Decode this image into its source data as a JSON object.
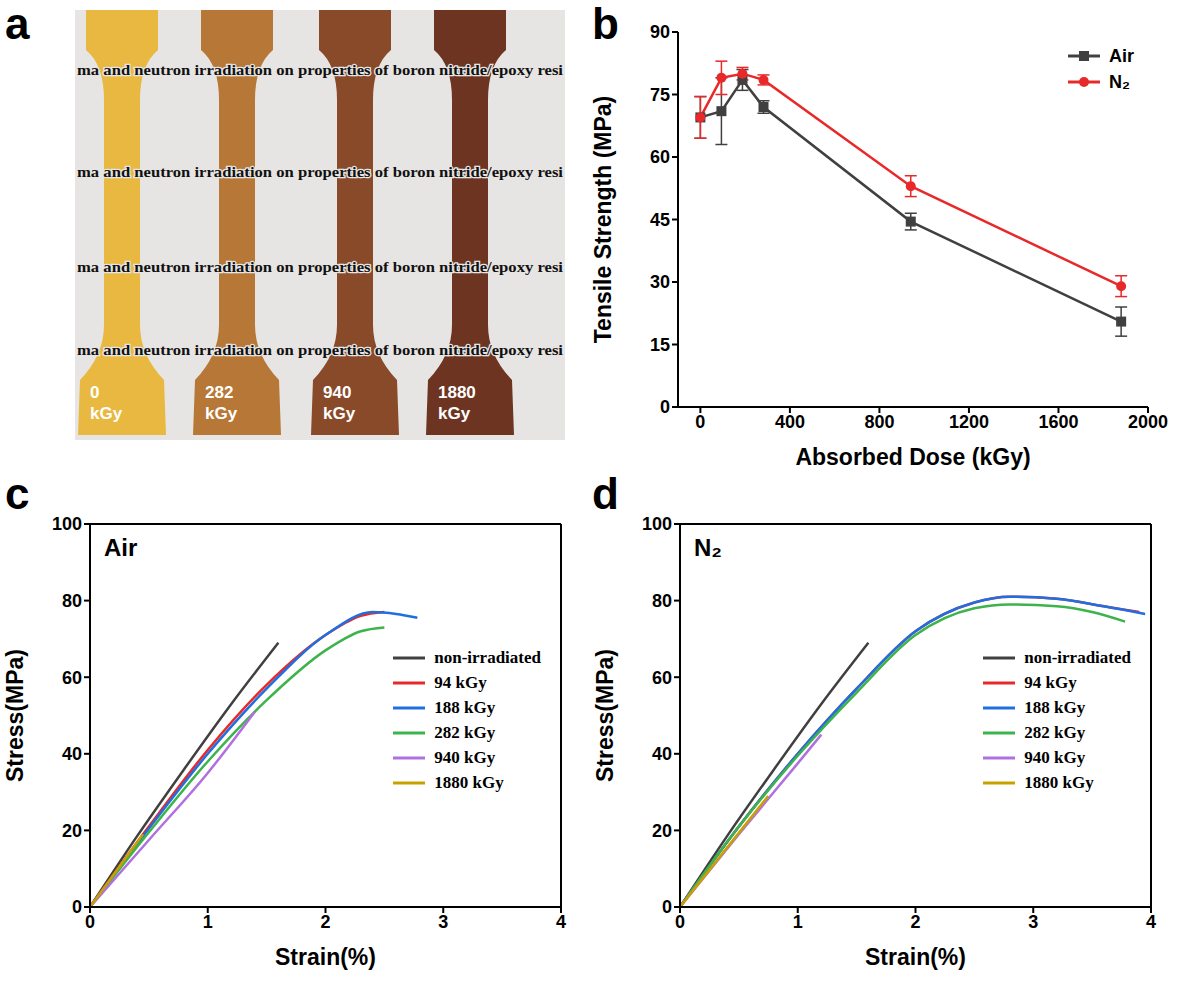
{
  "photo": {
    "panel": "a",
    "background_text": "ma and neutron irradiation on properties of boron nitride/epoxy resi",
    "specimens": [
      {
        "label": "0 kGy",
        "color": "#e8b22a"
      },
      {
        "label": "282 kGy",
        "color": "#b0681e"
      },
      {
        "label": "940 kGy",
        "color": "#7c3410"
      },
      {
        "label": "1880 kGy",
        "color": "#5c1c06"
      }
    ]
  },
  "chart_data": [
    {
      "panel": "b",
      "type": "line",
      "x_label": "Absorbed Dose (kGy)",
      "y_label": "Tensile Strength (MPa)",
      "x": [
        0,
        94,
        188,
        282,
        940,
        1880
      ],
      "xlim": [
        -100,
        2000
      ],
      "xticks": [
        0,
        400,
        800,
        1200,
        1600,
        2000
      ],
      "ylim": [
        0,
        90
      ],
      "yticks": [
        0,
        15,
        30,
        45,
        60,
        75,
        90
      ],
      "legend": "upper right",
      "series": [
        {
          "name": "Air",
          "color": "#404040",
          "marker": "square",
          "values": [
            69.5,
            71,
            78.5,
            72,
            44.5,
            20.5
          ],
          "errors": [
            5,
            8,
            2.5,
            1.5,
            2,
            3.5
          ]
        },
        {
          "name": "N₂",
          "color": "#e8292a",
          "marker": "circle",
          "values": [
            69.5,
            79,
            80,
            78.5,
            53,
            29
          ],
          "errors": [
            5,
            4,
            1.5,
            1.2,
            2.5,
            2.5
          ]
        }
      ]
    },
    {
      "panel": "c",
      "type": "line",
      "title": "Air",
      "x_label": "Strain(%)",
      "y_label": "Stress(MPa)",
      "xlim": [
        0,
        4
      ],
      "xticks": [
        0,
        1,
        2,
        3,
        4
      ],
      "ylim": [
        0,
        100
      ],
      "yticks": [
        0,
        20,
        40,
        60,
        80,
        100
      ],
      "legend": "right",
      "series": [
        {
          "name": "non-irradiated",
          "color": "#404040",
          "x": [
            0,
            0.4,
            0.8,
            1.2,
            1.6
          ],
          "values": [
            0,
            18.5,
            36,
            53,
            69
          ]
        },
        {
          "name": "94 kGy",
          "color": "#e8292a",
          "x": [
            0,
            0.5,
            1,
            1.5,
            2,
            2.3,
            2.5
          ],
          "values": [
            0,
            21,
            41,
            58,
            71,
            76,
            77
          ]
        },
        {
          "name": "188 kGy",
          "color": "#1f6fe0",
          "x": [
            0,
            0.5,
            1,
            1.5,
            2,
            2.4,
            2.6,
            2.78
          ],
          "values": [
            0,
            20.5,
            40,
            57,
            71,
            77,
            76.5,
            75.5
          ]
        },
        {
          "name": "282 kGy",
          "color": "#3cb44b",
          "x": [
            0,
            0.5,
            1,
            1.5,
            2,
            2.3,
            2.5
          ],
          "values": [
            0,
            19.5,
            38,
            54,
            67,
            72,
            73
          ]
        },
        {
          "name": "940 kGy",
          "color": "#b070e0",
          "x": [
            0,
            0.5,
            1,
            1.4
          ],
          "values": [
            0,
            17.5,
            35,
            51
          ]
        },
        {
          "name": "1880 kGy",
          "color": "#c8a000",
          "x": [
            0,
            0.45
          ],
          "values": [
            0,
            19
          ]
        }
      ]
    },
    {
      "panel": "d",
      "type": "line",
      "title": "N₂",
      "x_label": "Strain(%)",
      "y_label": "Stress(MPa)",
      "xlim": [
        0,
        4
      ],
      "xticks": [
        0,
        1,
        2,
        3,
        4
      ],
      "ylim": [
        0,
        100
      ],
      "yticks": [
        0,
        20,
        40,
        60,
        80,
        100
      ],
      "legend": "right",
      "series": [
        {
          "name": "non-irradiated",
          "color": "#404040",
          "x": [
            0,
            0.4,
            0.8,
            1.2,
            1.6
          ],
          "values": [
            0,
            18.5,
            36,
            53,
            69
          ]
        },
        {
          "name": "94 kGy",
          "color": "#e8292a",
          "x": [
            0,
            0.5,
            1,
            1.5,
            2,
            2.5,
            2.8,
            3.2,
            3.6,
            3.9
          ],
          "values": [
            0,
            21,
            40,
            57,
            72,
            79.5,
            81,
            80.5,
            78.5,
            77
          ]
        },
        {
          "name": "188 kGy",
          "color": "#1f6fe0",
          "x": [
            0,
            0.5,
            1,
            1.5,
            2,
            2.5,
            2.8,
            3.2,
            3.6,
            3.95
          ],
          "values": [
            0,
            21,
            40,
            57,
            72,
            79.5,
            81,
            80.5,
            78.5,
            76.5
          ]
        },
        {
          "name": "282 kGy",
          "color": "#3cb44b",
          "x": [
            0,
            0.5,
            1,
            1.5,
            2,
            2.5,
            2.8,
            3.2,
            3.5,
            3.78
          ],
          "values": [
            0,
            21,
            39.5,
            56,
            71,
            78,
            79,
            78.5,
            77,
            74.5
          ]
        },
        {
          "name": "940 kGy",
          "color": "#b070e0",
          "x": [
            0,
            0.5,
            1,
            1.2
          ],
          "values": [
            0,
            19,
            37.5,
            45
          ]
        },
        {
          "name": "1880 kGy",
          "color": "#c8a000",
          "x": [
            0,
            0.4,
            0.75
          ],
          "values": [
            0,
            15.5,
            29
          ]
        }
      ]
    }
  ]
}
